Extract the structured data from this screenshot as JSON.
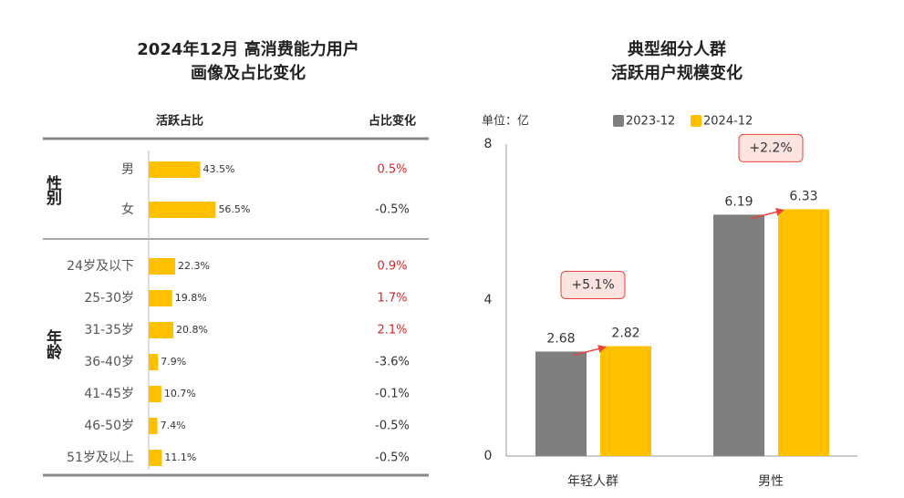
{
  "chart_data": [
    {
      "type": "hbar-table",
      "title": [
        "2024年12月 高消费能力用户",
        "画像及占比变化"
      ],
      "headers": [
        "活跃占比",
        "占比变化"
      ],
      "color": "#ffc000",
      "positive_color": "#d62728",
      "negative_color": "#333333",
      "groups": [
        {
          "label": "性别",
          "categories": [
            "男",
            "女"
          ],
          "values": [
            43.5,
            56.5
          ],
          "value_labels": [
            "43.5%",
            "56.5%"
          ],
          "changes": [
            0.5,
            -0.5
          ],
          "change_labels": [
            "0.5%",
            "-0.5%"
          ]
        },
        {
          "label": "年龄",
          "categories": [
            "24岁及以下",
            "25-30岁",
            "31-35岁",
            "36-40岁",
            "41-45岁",
            "46-50岁",
            "51岁及以上"
          ],
          "values": [
            22.3,
            19.8,
            20.8,
            7.9,
            10.7,
            7.4,
            11.1
          ],
          "value_labels": [
            "22.3%",
            "19.8%",
            "20.8%",
            "7.9%",
            "10.7%",
            "7.4%",
            "11.1%"
          ],
          "changes": [
            0.9,
            1.7,
            2.1,
            -3.6,
            -0.1,
            -0.5,
            -0.5
          ],
          "change_labels": [
            "0.9%",
            "1.7%",
            "2.1%",
            "-3.6%",
            "-0.1%",
            "-0.5%",
            "-0.5%"
          ]
        }
      ]
    },
    {
      "type": "bar",
      "title": [
        "典型细分人群",
        "活跃用户规模变化"
      ],
      "unit_label": "单位：亿",
      "categories": [
        "年轻人群",
        "男性"
      ],
      "series": [
        {
          "name": "2023-12",
          "color": "#7f7f7f",
          "values": [
            2.68,
            6.19
          ]
        },
        {
          "name": "2024-12",
          "color": "#ffc000",
          "values": [
            2.82,
            6.33
          ]
        }
      ],
      "annotations": [
        "+5.1%",
        "+2.2%"
      ],
      "ylim": [
        0,
        8
      ],
      "yticks": [
        0,
        4,
        8
      ]
    }
  ]
}
